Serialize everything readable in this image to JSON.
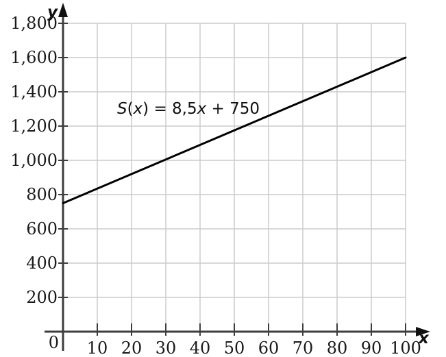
{
  "figure": {
    "background": "#ffffff"
  },
  "chart_data": {
    "type": "line",
    "title": "",
    "xlabel": "x",
    "ylabel": "y",
    "xlim": [
      0,
      100
    ],
    "ylim": [
      0,
      1800
    ],
    "x_ticks": [
      10,
      20,
      30,
      40,
      50,
      60,
      70,
      80,
      90,
      100
    ],
    "x_tick_labels": [
      "10",
      "20",
      "30",
      "40",
      "50",
      "60",
      "70",
      "80",
      "90",
      "100"
    ],
    "y_ticks": [
      200,
      400,
      600,
      800,
      1000,
      1200,
      1400,
      1600,
      1800
    ],
    "y_tick_labels": [
      "200",
      "400",
      "600",
      "800",
      "1,000",
      "1,200",
      "1,400",
      "1,600",
      "1,800"
    ],
    "origin_label": "0",
    "grid": true,
    "legend": "none",
    "series": [
      {
        "name": "S(x) = 8,5x + 750",
        "slope": 8.5,
        "intercept": 750,
        "x": [
          0,
          100
        ],
        "y": [
          750,
          1600
        ],
        "color": "#000000"
      }
    ],
    "annotation": {
      "text": "S(x) = 8,5x + 750",
      "parts": [
        {
          "text": "S",
          "italic": true
        },
        {
          "text": "(",
          "italic": false
        },
        {
          "text": "x",
          "italic": true
        },
        {
          "text": ") = 8,5",
          "italic": false
        },
        {
          "text": "x",
          "italic": true
        },
        {
          "text": " + 750",
          "italic": false
        }
      ],
      "x": 36.6,
      "y": 1272
    },
    "colors": {
      "grid": "#cccccc",
      "axis": "#3d3d3d",
      "arrow": "#111111",
      "line": "#000000",
      "text": "#1a1a1a"
    }
  }
}
